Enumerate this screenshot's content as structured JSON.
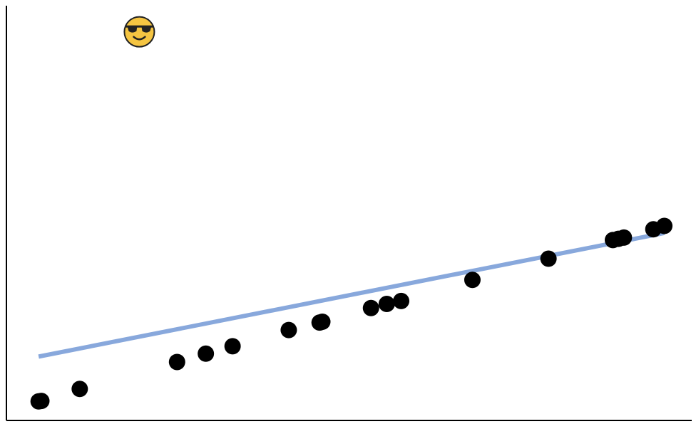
{
  "chart_data": {
    "type": "scatter",
    "title": "",
    "xlabel": "",
    "ylabel": "",
    "grid": false,
    "legend": "none",
    "xlim": [
      0,
      1
    ],
    "ylim": [
      0,
      1
    ],
    "colors": {
      "points": "#000000",
      "fit_line": "#88a8dc",
      "axis": "#000000"
    },
    "series": [
      {
        "type": "scatter",
        "points": [
          {
            "x": 0.047,
            "y": 0.046
          },
          {
            "x": 0.051,
            "y": 0.047
          },
          {
            "x": 0.107,
            "y": 0.076
          },
          {
            "x": 0.249,
            "y": 0.141
          },
          {
            "x": 0.291,
            "y": 0.161
          },
          {
            "x": 0.33,
            "y": 0.179
          },
          {
            "x": 0.412,
            "y": 0.218
          },
          {
            "x": 0.457,
            "y": 0.236
          },
          {
            "x": 0.461,
            "y": 0.238
          },
          {
            "x": 0.532,
            "y": 0.271
          },
          {
            "x": 0.555,
            "y": 0.281
          },
          {
            "x": 0.576,
            "y": 0.288
          },
          {
            "x": 0.68,
            "y": 0.339
          },
          {
            "x": 0.791,
            "y": 0.39
          },
          {
            "x": 0.885,
            "y": 0.435
          },
          {
            "x": 0.893,
            "y": 0.438
          },
          {
            "x": 0.901,
            "y": 0.441
          },
          {
            "x": 0.944,
            "y": 0.461
          },
          {
            "x": 0.96,
            "y": 0.469
          }
        ]
      },
      {
        "type": "line",
        "points": [
          {
            "x": 0.047,
            "y": 0.154
          },
          {
            "x": 0.96,
            "y": 0.452
          }
        ]
      }
    ],
    "annotations": [
      {
        "icon": "sunglasses-face-emoji",
        "x": 0.194,
        "y": 0.937
      }
    ]
  }
}
